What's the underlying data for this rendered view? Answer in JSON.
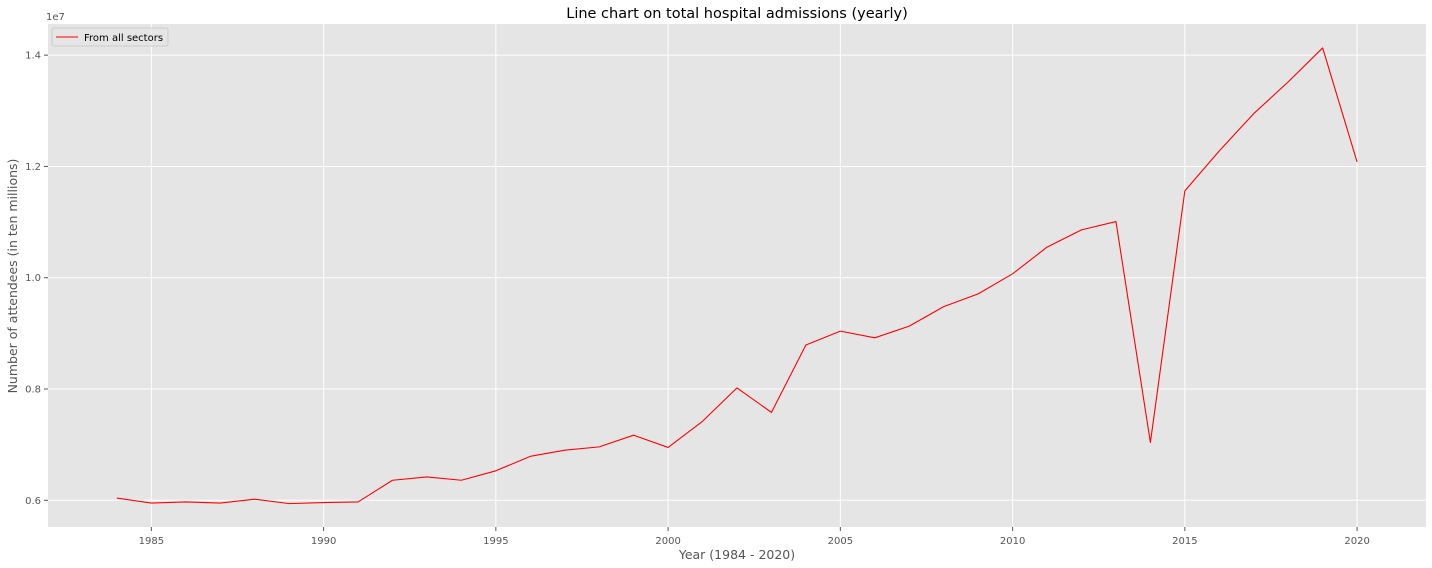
{
  "chart_data": {
    "type": "line",
    "title": "Line chart on total hospital admissions (yearly)",
    "xlabel": "Year (1984 - 2020)",
    "ylabel": "Number of attendees (in ten millions)",
    "y_offset_label": "1e7",
    "xlim": [
      1982,
      2022
    ],
    "ylim": [
      5520000,
      14560000
    ],
    "xticks": [
      1985,
      1990,
      1995,
      2000,
      2005,
      2010,
      2015,
      2020
    ],
    "xtick_labels": [
      "1985",
      "1990",
      "1995",
      "2000",
      "2005",
      "2010",
      "2015",
      "2020"
    ],
    "yticks": [
      6000000,
      8000000,
      10000000,
      12000000,
      14000000
    ],
    "ytick_labels": [
      "0.6",
      "0.8",
      "1.0",
      "1.2",
      "1.4"
    ],
    "grid": true,
    "legend_position": "top-left",
    "series": [
      {
        "name": "From all sectors",
        "color": "#ff0000",
        "x": [
          1984,
          1985,
          1986,
          1987,
          1988,
          1989,
          1990,
          1991,
          1992,
          1993,
          1994,
          1995,
          1996,
          1997,
          1998,
          1999,
          2000,
          2001,
          2002,
          2003,
          2004,
          2005,
          2006,
          2007,
          2008,
          2009,
          2010,
          2011,
          2012,
          2013,
          2014,
          2015,
          2016,
          2017,
          2018,
          2019,
          2020
        ],
        "y": [
          6040000,
          5950000,
          5970000,
          5950000,
          6020000,
          5940000,
          5960000,
          5970000,
          6360000,
          6420000,
          6360000,
          6530000,
          6790000,
          6900000,
          6960000,
          7170000,
          6950000,
          7420000,
          8020000,
          7580000,
          8790000,
          9040000,
          8920000,
          9130000,
          9480000,
          9710000,
          10070000,
          10550000,
          10860000,
          11010000,
          7040000,
          11560000,
          12280000,
          12950000,
          13520000,
          14130000,
          12080000
        ]
      }
    ]
  }
}
